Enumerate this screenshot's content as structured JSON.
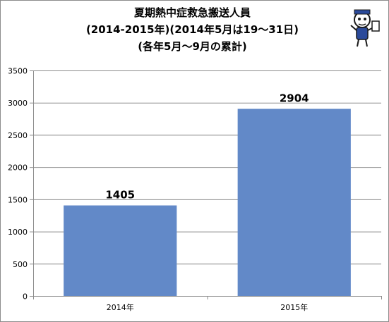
{
  "chart_data": {
    "type": "bar",
    "title": [
      "夏期熱中症救急搬送人員",
      "(2014-2015年)(2014年5月は19～31日)",
      "(各年5月～9月の累計)"
    ],
    "categories": [
      "2014年",
      "2015年"
    ],
    "values": [
      1405,
      2904
    ],
    "data_labels": [
      "1405",
      "2904"
    ],
    "ylim": [
      0,
      3500
    ],
    "y_ticks": [
      "0",
      "500",
      "1000",
      "1500",
      "2000",
      "2500",
      "3000",
      "3500"
    ],
    "grid": true,
    "legend": "none",
    "bar_color": "#6289c8"
  },
  "logo_icon": "mascot-logo-icon"
}
